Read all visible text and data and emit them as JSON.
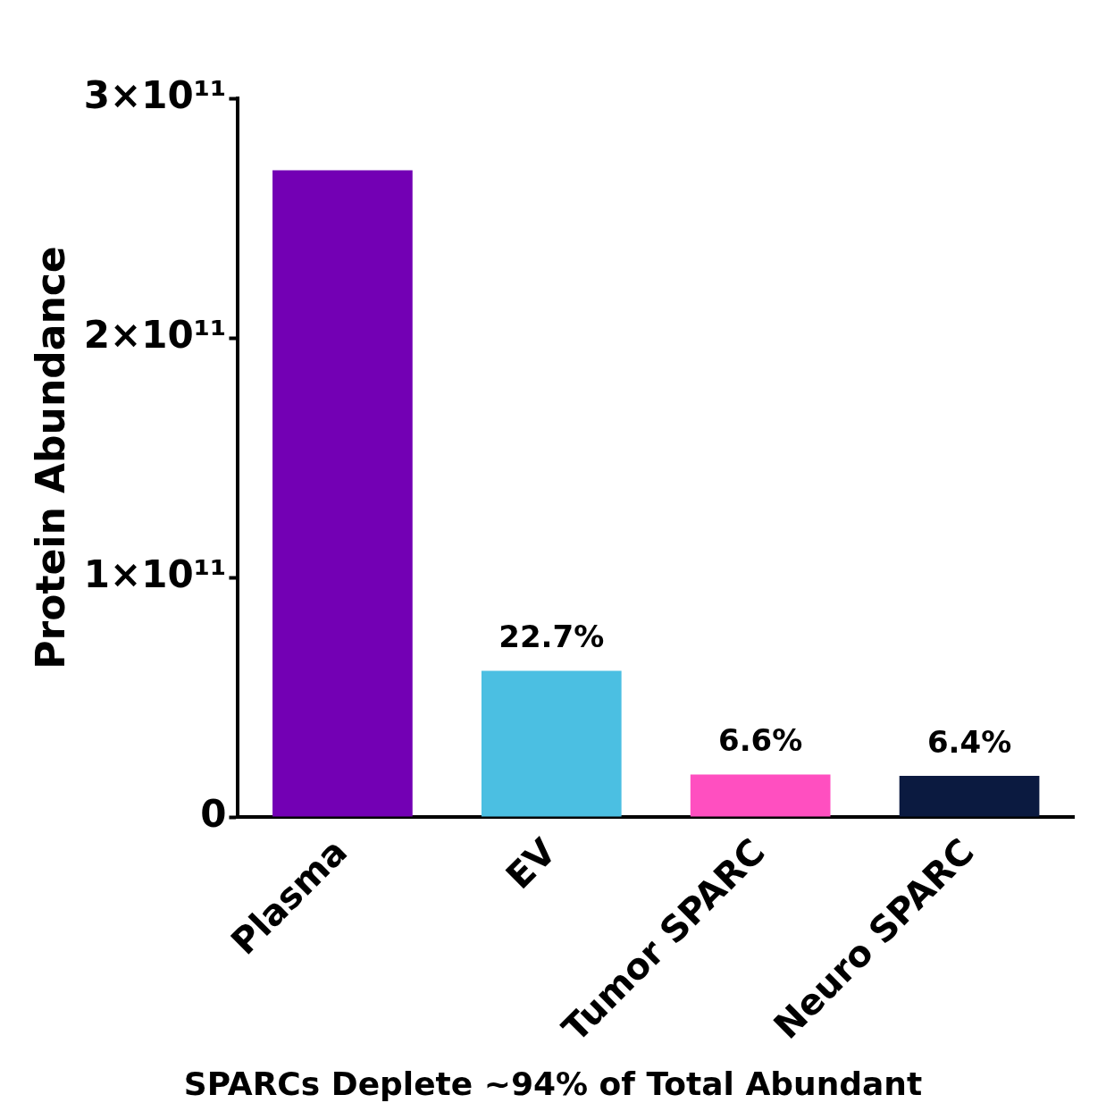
{
  "chart_data": {
    "type": "bar",
    "ylabel": "Protein Abundance",
    "categories": [
      "Plasma",
      "EV",
      "Tumor SPARC",
      "Neuro SPARC"
    ],
    "values": [
      270000000000.0,
      61000000000.0,
      17800000000.0,
      17200000000.0
    ],
    "colors": [
      "#7300b4",
      "#4bbfe2",
      "#ff4fc0",
      "#0b1a40"
    ],
    "ylim": [
      0,
      300000000000.0
    ],
    "yticks": [
      {
        "value": 0,
        "label": "0"
      },
      {
        "value": 100000000000.0,
        "label": "1×10¹¹"
      },
      {
        "value": 200000000000.0,
        "label": "2×10¹¹"
      },
      {
        "value": 300000000000.0,
        "label": "3×10¹¹"
      }
    ],
    "grid": false,
    "legend": false,
    "annotations": [
      {
        "text": "22.7%",
        "x": "EV",
        "y": 61000000000.0
      },
      {
        "text": "6.6%",
        "x": "Tumor SPARC",
        "y": 17800000000.0
      },
      {
        "text": "6.4%",
        "x": "Neuro SPARC",
        "y": 17200000000.0
      },
      "SPARCs Deplete ~94% of Total Abundant"
    ]
  }
}
